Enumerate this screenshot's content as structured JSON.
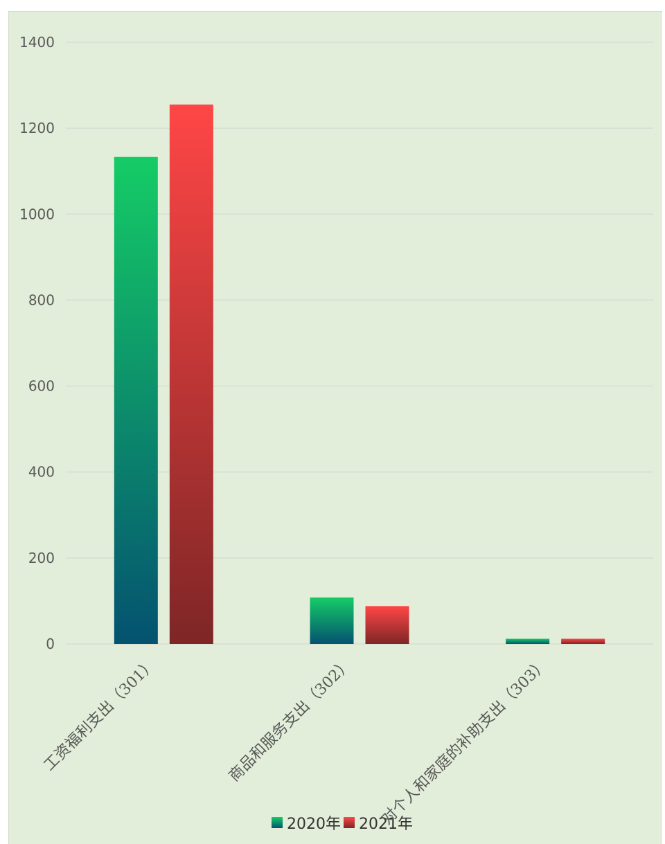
{
  "chart_data": {
    "type": "bar",
    "categories": [
      "工资福利支出（301）",
      "商品和服务支出（302）",
      "对个人和家庭的补助支出（303）"
    ],
    "series": [
      {
        "name": "2020年",
        "values": [
          1133,
          108,
          12
        ]
      },
      {
        "name": "2021年",
        "values": [
          1255,
          88,
          12
        ]
      }
    ],
    "ylim": [
      0,
      1400
    ],
    "yticks": [
      "0",
      "200",
      "400",
      "600",
      "800",
      "1000",
      "1200",
      "1400"
    ],
    "grid": true,
    "legend": "bottom",
    "colors": {
      "series_2020_top": "#15cc66",
      "series_2020_bottom": "#045270",
      "series_2021_top": "#ff4646",
      "series_2021_bottom": "#7e2626",
      "grid": "#d6ddd3",
      "background": "#e2eed9"
    }
  }
}
